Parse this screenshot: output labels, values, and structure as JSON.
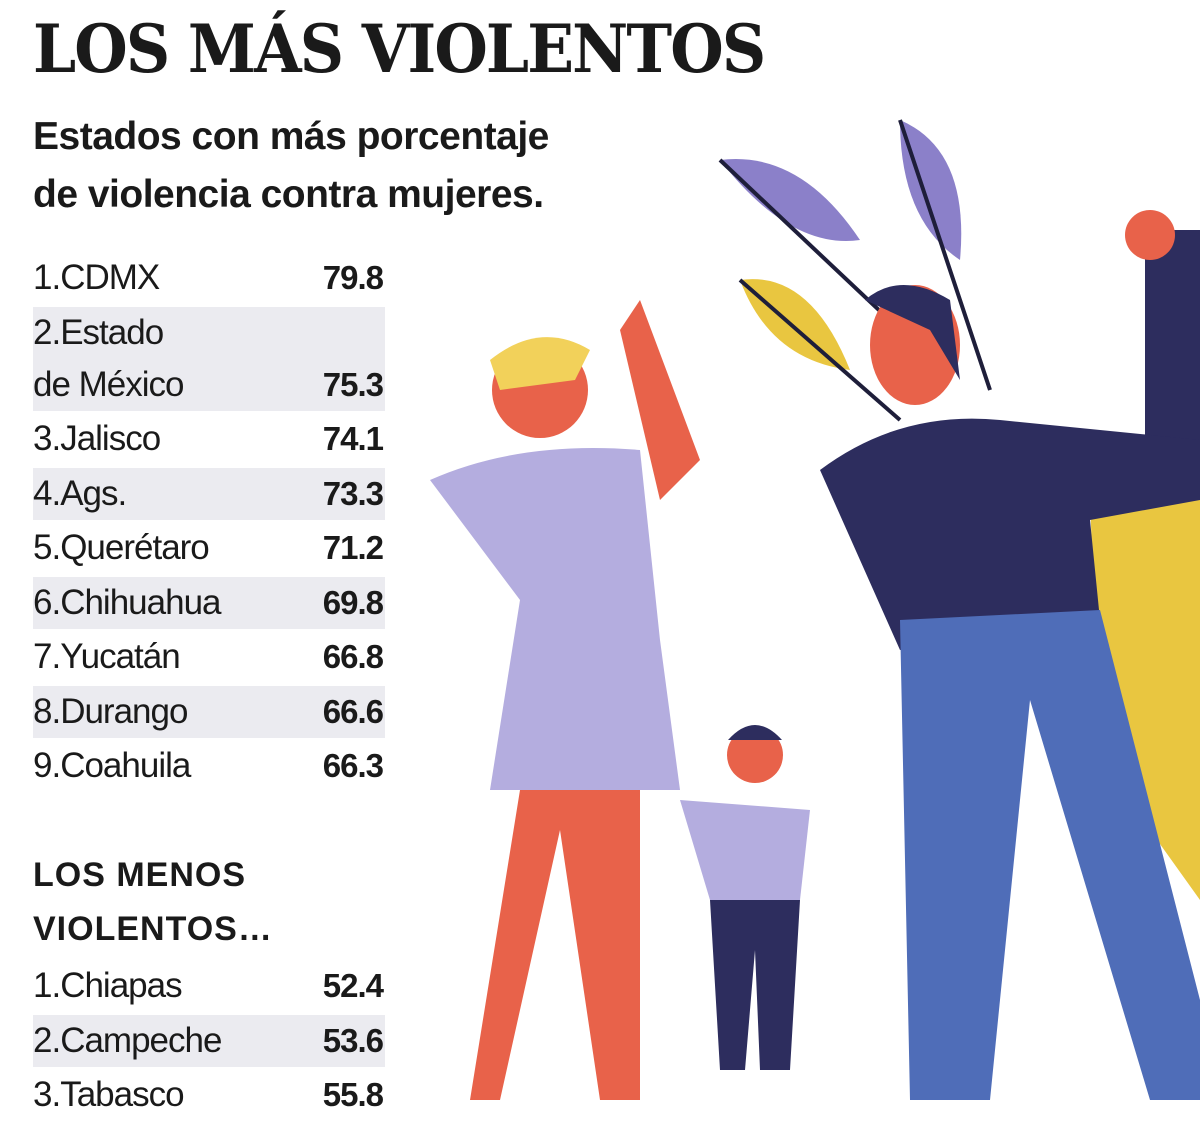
{
  "header": {
    "title": "LOS MÁS VIOLENTOS",
    "subtitle": "Estados con más porcentaje\nde violencia contra mujeres."
  },
  "most_violent": {
    "rows": [
      [
        "1.CDMX",
        79.8
      ],
      [
        "2.Estado\nde México",
        75.3
      ],
      [
        "3.Jalisco",
        74.1
      ],
      [
        "4.Ags.",
        73.3
      ],
      [
        "5.Querétaro",
        71.2
      ],
      [
        "6.Chihuahua",
        69.8
      ],
      [
        "7.Yucatán",
        66.8
      ],
      [
        "8.Durango",
        66.6
      ],
      [
        "9.Coahuila",
        66.3
      ]
    ]
  },
  "least_violent": {
    "title": "LOS MENOS\nVIOLENTOS…",
    "rows": [
      [
        "1.Chiapas",
        52.4
      ],
      [
        "2.Campeche",
        53.6
      ],
      [
        "3.Tabasco",
        55.8
      ]
    ]
  }
}
